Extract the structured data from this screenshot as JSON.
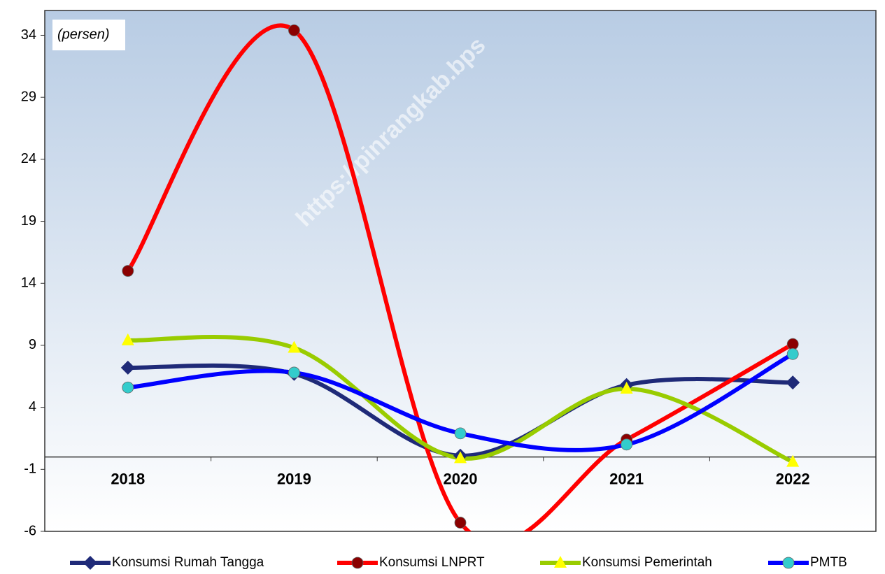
{
  "chart_data": {
    "type": "line",
    "annotation": "(persen)",
    "watermark": "https://pinrangkab.bps",
    "categories": [
      "2018",
      "2019",
      "2020",
      "2021",
      "2022"
    ],
    "series": [
      {
        "name": "Konsumsi Rumah Tangga",
        "color": "#1f2a78",
        "marker": "diamond",
        "marker_color": "#1f2a78",
        "values": [
          7.2,
          6.7,
          0.1,
          5.8,
          6.0
        ]
      },
      {
        "name": "Konsumsi LNPRT",
        "color": "#ff0000",
        "marker": "circle",
        "marker_color": "#8b0000",
        "values": [
          15.0,
          34.4,
          -5.3,
          1.4,
          9.1
        ]
      },
      {
        "name": "Konsumsi  Pemerintah",
        "color": "#99cc00",
        "marker": "triangle",
        "marker_color": "#ffff00",
        "values": [
          9.4,
          8.8,
          -0.1,
          5.5,
          -0.4
        ]
      },
      {
        "name": "PMTB",
        "color": "#0000ff",
        "marker": "circle",
        "marker_color": "#33cccc",
        "values": [
          5.6,
          6.8,
          1.9,
          1.0,
          8.3
        ]
      }
    ],
    "ylim": [
      -6,
      36
    ],
    "yticks": [
      -6,
      -1,
      4,
      9,
      14,
      19,
      24,
      29,
      34
    ],
    "smooth": true
  }
}
